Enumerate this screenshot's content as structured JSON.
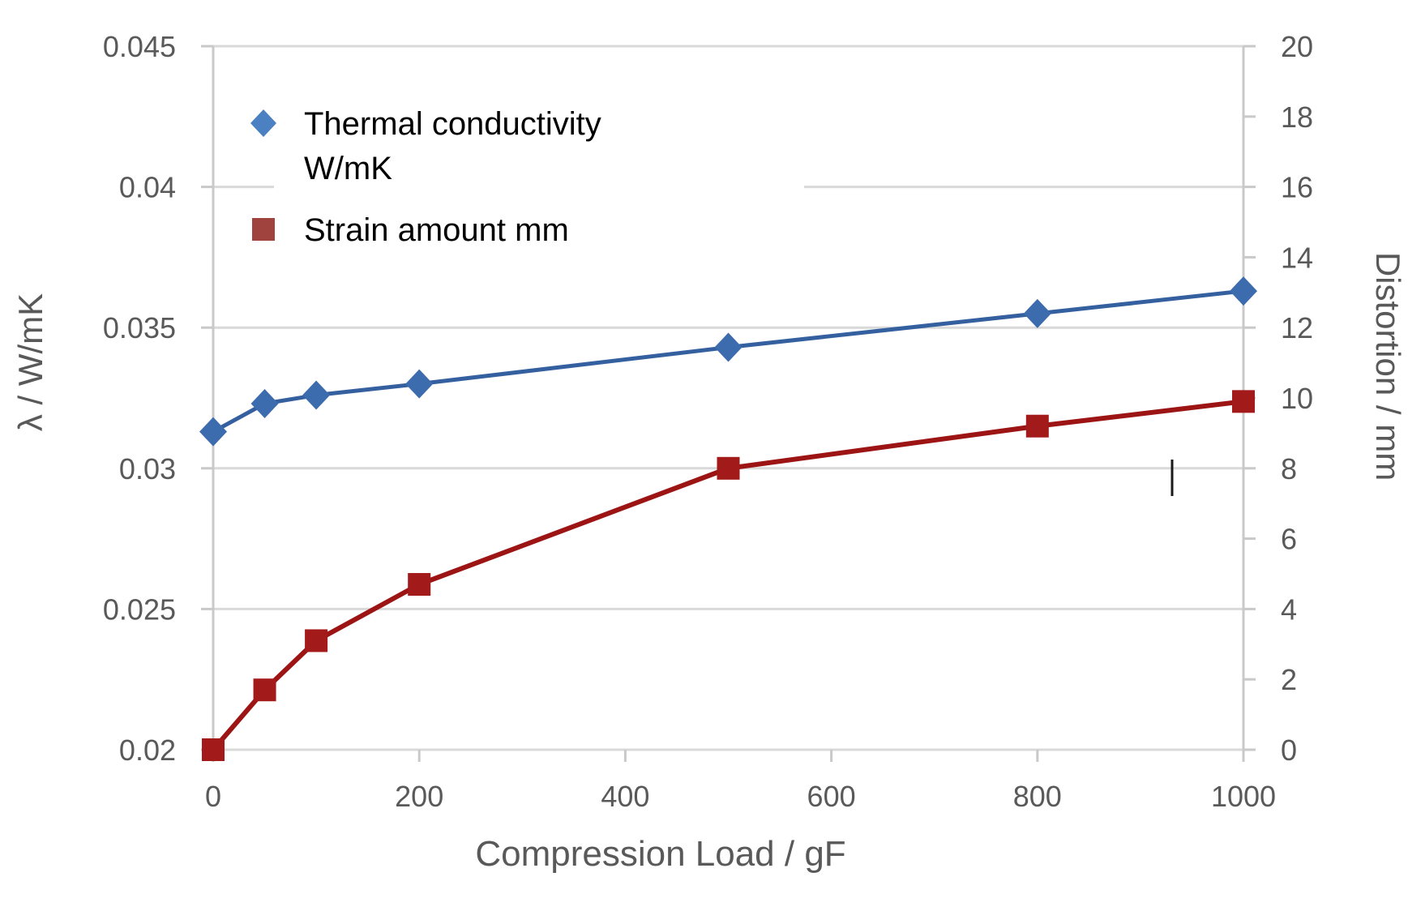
{
  "chart_data": {
    "type": "line",
    "title": "",
    "xlabel": "Compression Load / gF",
    "ylabel_left": "λ / W/mK",
    "ylabel_right": "Distortion / mm",
    "x": [
      0,
      50,
      100,
      200,
      500,
      800,
      1000
    ],
    "series": [
      {
        "name": "Thermal conductivity W/mK",
        "axis": "left",
        "marker": "diamond",
        "color": "#35609f",
        "marker_color": "#3d6cae",
        "values": [
          0.0313,
          0.0323,
          0.0326,
          0.033,
          0.0343,
          0.0355,
          0.0363
        ]
      },
      {
        "name": "Strain amount mm",
        "axis": "right",
        "marker": "square",
        "color": "#9c1414",
        "marker_color": "#a31a1a",
        "values": [
          0,
          1.7,
          3.1,
          4.7,
          8.0,
          9.2,
          9.9
        ]
      }
    ],
    "x_range": [
      0,
      1000
    ],
    "y_left_range": [
      0.02,
      0.045
    ],
    "y_right_range": [
      0,
      20
    ],
    "x_ticks": [
      "0",
      "200",
      "400",
      "600",
      "800",
      "1000"
    ],
    "y_left_ticks": [
      "0.02",
      "0.025",
      "0.03",
      "0.035",
      "0.04",
      "0.045"
    ],
    "y_right_ticks": [
      "0",
      "2",
      "4",
      "6",
      "8",
      "10",
      "12",
      "14",
      "16",
      "18",
      "20"
    ],
    "grid": true,
    "legend_position": "inside-top-left",
    "legend": [
      {
        "label_lines": [
          "Thermal conductivity",
          "W/mK"
        ],
        "marker": "diamond",
        "color": "#4b80c2"
      },
      {
        "label_lines": [
          "Strain amount mm"
        ],
        "marker": "square",
        "color": "#a0423d"
      }
    ],
    "colors": {
      "gridline": "#d9d9d9",
      "axis_line": "#c9c9c9",
      "tick_label": "#595959",
      "axis_title": "#595959",
      "legend_text": "#000000",
      "legend_bg": "#ffffff",
      "background": "#ffffff",
      "cursor_artifact": "#1a1a1a"
    }
  }
}
